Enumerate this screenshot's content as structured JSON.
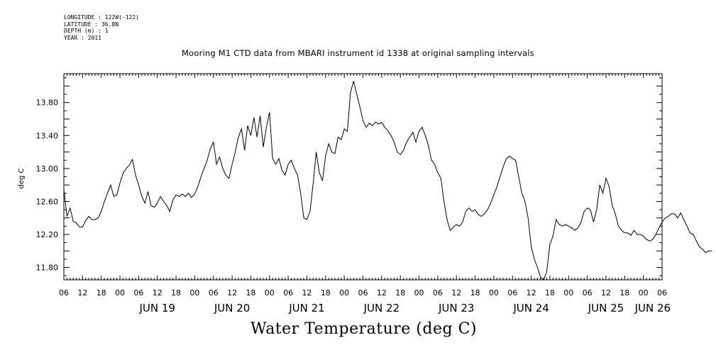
{
  "meta": {
    "longitude": "LONGITUDE : 122W(-122)",
    "latitude": "LATITUDE : 36.8N",
    "depth": "DEPTH (m) : 1",
    "year": "YEAR : 2011"
  },
  "title": "Mooring M1 CTD data from MBARI instrument id 1338 at original sampling intervals",
  "bottom_title": "Water Temperature (deg C)",
  "chart_data": {
    "type": "line",
    "title": "Mooring M1 CTD data from MBARI instrument id 1338 at original sampling intervals",
    "xlabel": "",
    "ylabel": "deg C",
    "ylim": [
      11.65,
      14.15
    ],
    "xlim": [
      "2011-06-18T06:00",
      "2011-06-26T06:00"
    ],
    "x_unit": "hours since 2011-06-18T00:00",
    "y_ticks": [
      "11.80",
      "12.20",
      "12.60",
      "13.00",
      "13.40",
      "13.80"
    ],
    "y_tick_values": [
      11.8,
      12.2,
      12.6,
      13.0,
      13.4,
      13.8
    ],
    "hour_tick_labels": [
      "06",
      "12",
      "18",
      "00",
      "06",
      "12",
      "18",
      "00",
      "06",
      "12",
      "18",
      "00",
      "06",
      "12",
      "18",
      "00",
      "06",
      "12",
      "18",
      "00",
      "06",
      "12",
      "18",
      "00",
      "06",
      "12",
      "18",
      "00",
      "06",
      "12",
      "18",
      "00",
      "06"
    ],
    "day_labels": [
      "JUN 19",
      "JUN 20",
      "JUN 21",
      "JUN 22",
      "JUN 23",
      "JUN 24",
      "JUN 25",
      "JUN 26"
    ],
    "series": [
      {
        "values": [
          [
            6,
            12.74
          ],
          [
            7,
            12.42
          ],
          [
            8,
            12.52
          ],
          [
            9,
            12.36
          ],
          [
            10,
            12.34
          ],
          [
            11,
            12.29
          ],
          [
            12,
            12.29
          ],
          [
            13,
            12.37
          ],
          [
            14,
            12.42
          ],
          [
            15,
            12.38
          ],
          [
            16,
            12.38
          ],
          [
            17,
            12.4
          ],
          [
            18,
            12.48
          ],
          [
            19,
            12.6
          ],
          [
            20,
            12.7
          ],
          [
            21,
            12.8
          ],
          [
            22,
            12.66
          ],
          [
            23,
            12.68
          ],
          [
            24,
            12.82
          ],
          [
            25,
            12.94
          ],
          [
            26,
            13.0
          ],
          [
            27,
            13.04
          ],
          [
            28,
            13.11
          ],
          [
            29,
            12.92
          ],
          [
            30,
            12.8
          ],
          [
            31,
            12.66
          ],
          [
            32,
            12.58
          ],
          [
            33,
            12.72
          ],
          [
            34,
            12.55
          ],
          [
            35,
            12.53
          ],
          [
            36,
            12.58
          ],
          [
            37,
            12.66
          ],
          [
            38,
            12.6
          ],
          [
            39,
            12.55
          ],
          [
            40,
            12.48
          ],
          [
            41,
            12.62
          ],
          [
            42,
            12.68
          ],
          [
            43,
            12.66
          ],
          [
            44,
            12.69
          ],
          [
            45,
            12.66
          ],
          [
            46,
            12.7
          ],
          [
            47,
            12.65
          ],
          [
            48,
            12.69
          ],
          [
            49,
            12.78
          ],
          [
            50,
            12.9
          ],
          [
            51,
            13.0
          ],
          [
            52,
            13.1
          ],
          [
            53,
            13.24
          ],
          [
            54,
            13.32
          ],
          [
            55,
            13.05
          ],
          [
            56,
            13.14
          ],
          [
            57,
            13.0
          ],
          [
            58,
            12.92
          ],
          [
            59,
            12.88
          ],
          [
            60,
            13.05
          ],
          [
            61,
            13.2
          ],
          [
            62,
            13.38
          ],
          [
            63,
            13.48
          ],
          [
            64,
            13.22
          ],
          [
            65,
            13.52
          ],
          [
            66,
            13.4
          ],
          [
            67,
            13.62
          ],
          [
            68,
            13.38
          ],
          [
            69,
            13.64
          ],
          [
            70,
            13.26
          ],
          [
            71,
            13.5
          ],
          [
            72,
            13.68
          ],
          [
            73,
            13.12
          ],
          [
            74,
            13.05
          ],
          [
            75,
            13.12
          ],
          [
            76,
            12.98
          ],
          [
            77,
            12.92
          ],
          [
            78,
            13.05
          ],
          [
            79,
            13.1
          ],
          [
            80,
            13.0
          ],
          [
            81,
            12.92
          ],
          [
            82,
            12.7
          ],
          [
            83,
            12.4
          ],
          [
            84,
            12.38
          ],
          [
            85,
            12.48
          ],
          [
            86,
            12.82
          ],
          [
            87,
            13.2
          ],
          [
            88,
            12.95
          ],
          [
            89,
            12.85
          ],
          [
            90,
            13.15
          ],
          [
            91,
            13.3
          ],
          [
            92,
            13.2
          ],
          [
            93,
            13.18
          ],
          [
            94,
            13.38
          ],
          [
            95,
            13.35
          ],
          [
            96,
            13.48
          ],
          [
            97,
            13.45
          ],
          [
            98,
            13.92
          ],
          [
            99,
            14.06
          ],
          [
            100,
            13.9
          ],
          [
            101,
            13.75
          ],
          [
            102,
            13.58
          ],
          [
            103,
            13.5
          ],
          [
            104,
            13.55
          ],
          [
            105,
            13.52
          ],
          [
            106,
            13.56
          ],
          [
            107,
            13.54
          ],
          [
            108,
            13.56
          ],
          [
            109,
            13.5
          ],
          [
            110,
            13.46
          ],
          [
            111,
            13.4
          ],
          [
            112,
            13.32
          ],
          [
            113,
            13.2
          ],
          [
            114,
            13.17
          ],
          [
            115,
            13.22
          ],
          [
            116,
            13.32
          ],
          [
            117,
            13.38
          ],
          [
            118,
            13.44
          ],
          [
            119,
            13.32
          ],
          [
            120,
            13.45
          ],
          [
            121,
            13.5
          ],
          [
            122,
            13.4
          ],
          [
            123,
            13.28
          ],
          [
            124,
            13.1
          ],
          [
            125,
            13.05
          ],
          [
            126,
            12.95
          ],
          [
            127,
            12.88
          ],
          [
            128,
            12.6
          ],
          [
            129,
            12.38
          ],
          [
            130,
            12.25
          ],
          [
            131,
            12.29
          ],
          [
            132,
            12.32
          ],
          [
            133,
            12.3
          ],
          [
            134,
            12.35
          ],
          [
            135,
            12.48
          ],
          [
            136,
            12.52
          ],
          [
            137,
            12.48
          ],
          [
            138,
            12.5
          ],
          [
            139,
            12.44
          ],
          [
            140,
            12.42
          ],
          [
            141,
            12.45
          ],
          [
            142,
            12.5
          ],
          [
            143,
            12.58
          ],
          [
            144,
            12.68
          ],
          [
            145,
            12.78
          ],
          [
            146,
            12.9
          ],
          [
            147,
            13.02
          ],
          [
            148,
            13.12
          ],
          [
            149,
            13.15
          ],
          [
            150,
            13.12
          ],
          [
            151,
            13.1
          ],
          [
            152,
            12.9
          ],
          [
            153,
            12.7
          ],
          [
            154,
            12.6
          ],
          [
            155,
            12.4
          ],
          [
            156,
            12.05
          ],
          [
            157,
            11.9
          ],
          [
            158,
            11.8
          ],
          [
            159,
            11.68
          ],
          [
            160,
            11.65
          ],
          [
            161,
            11.75
          ],
          [
            162,
            12.08
          ],
          [
            163,
            12.18
          ],
          [
            164,
            12.38
          ],
          [
            165,
            12.32
          ],
          [
            166,
            12.3
          ],
          [
            167,
            12.32
          ],
          [
            168,
            12.3
          ],
          [
            169,
            12.28
          ],
          [
            170,
            12.25
          ],
          [
            171,
            12.28
          ],
          [
            172,
            12.35
          ],
          [
            173,
            12.48
          ],
          [
            174,
            12.52
          ],
          [
            175,
            12.5
          ],
          [
            176,
            12.35
          ],
          [
            177,
            12.5
          ],
          [
            178,
            12.8
          ],
          [
            179,
            12.7
          ],
          [
            180,
            12.88
          ],
          [
            181,
            12.78
          ],
          [
            182,
            12.55
          ],
          [
            183,
            12.45
          ],
          [
            184,
            12.3
          ],
          [
            185,
            12.25
          ],
          [
            186,
            12.22
          ],
          [
            187,
            12.22
          ],
          [
            188,
            12.19
          ],
          [
            189,
            12.25
          ],
          [
            190,
            12.2
          ],
          [
            191,
            12.2
          ],
          [
            192,
            12.18
          ],
          [
            193,
            12.14
          ],
          [
            194,
            12.12
          ],
          [
            195,
            12.14
          ],
          [
            196,
            12.2
          ],
          [
            197,
            12.28
          ],
          [
            198,
            12.35
          ],
          [
            199,
            12.4
          ],
          [
            200,
            12.42
          ],
          [
            201,
            12.45
          ],
          [
            202,
            12.45
          ],
          [
            203,
            12.4
          ],
          [
            204,
            12.46
          ],
          [
            205,
            12.38
          ],
          [
            206,
            12.3
          ],
          [
            207,
            12.22
          ],
          [
            208,
            12.2
          ],
          [
            209,
            12.12
          ],
          [
            210,
            12.05
          ],
          [
            211,
            12.02
          ],
          [
            212,
            11.98
          ],
          [
            213,
            12.0
          ],
          [
            214,
            12.0
          ]
        ]
      }
    ]
  }
}
